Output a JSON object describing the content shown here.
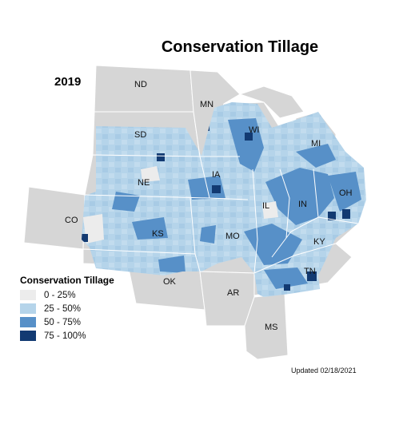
{
  "title": "Conservation Tillage",
  "year": "2019",
  "updated": "Updated 02/18/2021",
  "colors": {
    "background_states": "#d6d6d6",
    "border": "#ffffff",
    "bin_0_25": "#ececec",
    "bin_25_50": "#b5d4ea",
    "bin_50_75": "#5790c8",
    "bin_75_100": "#123a72"
  },
  "legend": {
    "title": "Conservation Tillage",
    "items": [
      {
        "label": "0 - 25%",
        "color": "#ececec"
      },
      {
        "label": "25 - 50%",
        "color": "#b5d4ea"
      },
      {
        "label": "50 - 75%",
        "color": "#5790c8"
      },
      {
        "label": "75 - 100%",
        "color": "#123a72"
      }
    ]
  },
  "states": [
    "ND",
    "MN",
    "SD",
    "WI",
    "MI",
    "NE",
    "IA",
    "IL",
    "IN",
    "OH",
    "CO",
    "KS",
    "MO",
    "KY",
    "OK",
    "TN",
    "AR",
    "MS"
  ]
}
